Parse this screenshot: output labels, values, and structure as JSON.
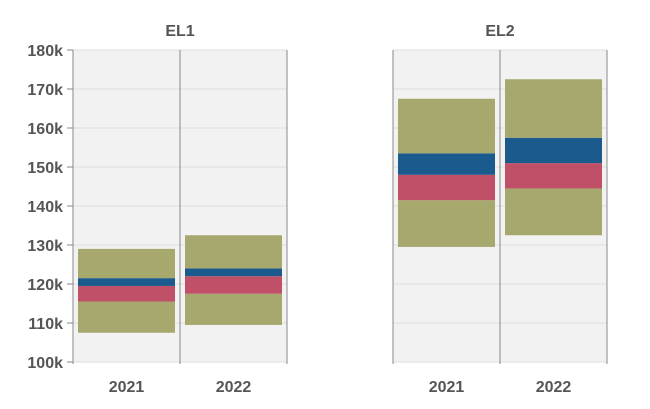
{
  "chart_data": {
    "type": "bar",
    "subtype": "floating-stacked-range",
    "groups": [
      {
        "name": "EL1",
        "categories": [
          "2021",
          "2022"
        ]
      },
      {
        "name": "EL2",
        "categories": [
          "2021",
          "2022"
        ]
      }
    ],
    "bands": [
      {
        "group": "EL1",
        "category": "2021",
        "min": 107500,
        "q1": 115500,
        "median": 119500,
        "q3": 121500,
        "max": 129000
      },
      {
        "group": "EL1",
        "category": "2022",
        "min": 109500,
        "q1": 117500,
        "median": 122000,
        "q3": 124000,
        "max": 132500
      },
      {
        "group": "EL2",
        "category": "2021",
        "min": 129500,
        "q1": 141500,
        "median": 148000,
        "q3": 153500,
        "max": 167500
      },
      {
        "group": "EL2",
        "category": "2022",
        "min": 132500,
        "q1": 144500,
        "median": 151000,
        "q3": 157500,
        "max": 172500
      }
    ],
    "segment_colors": {
      "lower": "#a6a86e",
      "lower_mid": "#bf5068",
      "upper_mid": "#1a5a8c",
      "upper": "#a6a86e"
    },
    "ylim": [
      100000,
      180000
    ],
    "yticks": [
      "100k",
      "110k",
      "120k",
      "130k",
      "140k",
      "150k",
      "160k",
      "170k",
      "180k"
    ],
    "ytick_values": [
      100000,
      110000,
      120000,
      130000,
      140000,
      150000,
      160000,
      170000,
      180000
    ],
    "grid": true,
    "panel_background": "#f2f2f2"
  }
}
